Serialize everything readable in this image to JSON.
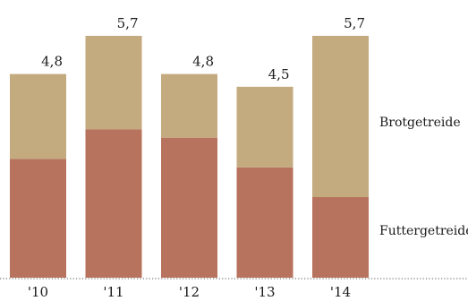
{
  "chart_data": {
    "type": "bar",
    "stacked": true,
    "categories": [
      "'10",
      "'11",
      "'12",
      "'13",
      "'14"
    ],
    "series": [
      {
        "name": "Futtergetreide",
        "color": "#b8735e",
        "values": [
          2.8,
          3.5,
          3.3,
          2.6,
          1.9
        ]
      },
      {
        "name": "Brotgetreide",
        "color": "#c4aa7f",
        "values": [
          2.0,
          2.2,
          1.5,
          1.9,
          3.8
        ]
      }
    ],
    "totals": [
      "4,8",
      "5,7",
      "4,8",
      "4,5",
      "5,7"
    ],
    "ylim": [
      0,
      5.7
    ],
    "grid": false,
    "legend_position": "right"
  }
}
